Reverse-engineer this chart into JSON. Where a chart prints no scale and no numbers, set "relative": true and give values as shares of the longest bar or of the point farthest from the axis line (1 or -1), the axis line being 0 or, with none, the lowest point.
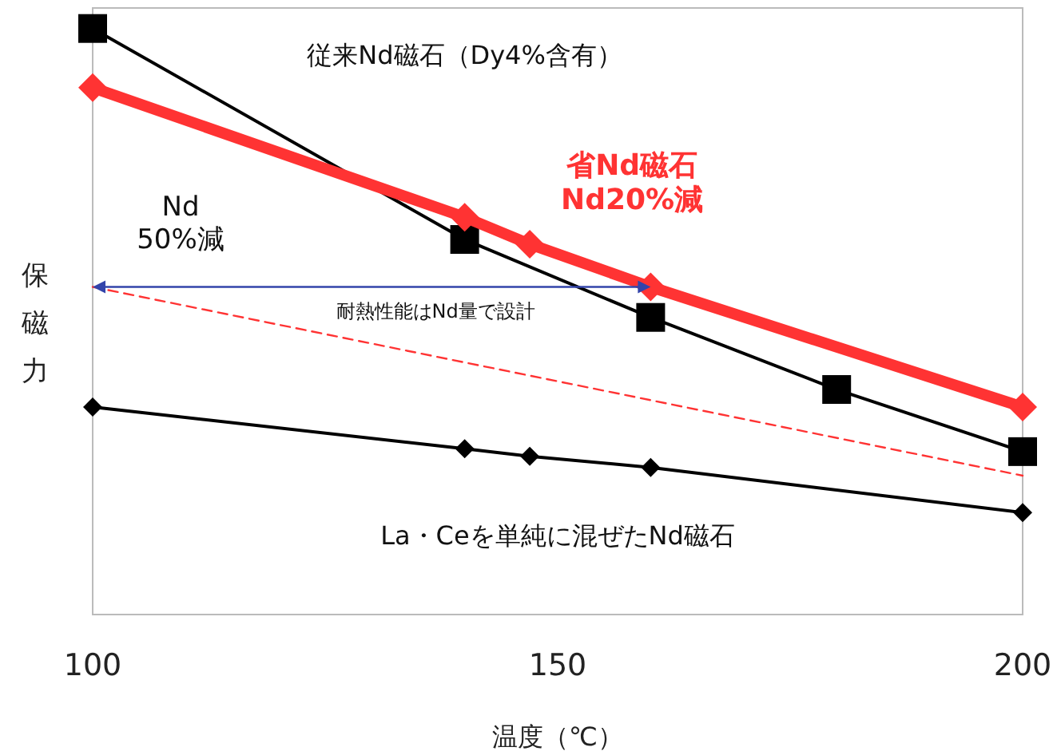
{
  "chart_data": {
    "type": "line",
    "relative": true,
    "xlabel": "温度（℃）",
    "ylabel": "保磁力",
    "xlim": [
      100,
      200
    ],
    "xticks": [
      100,
      150,
      200
    ],
    "grid": false,
    "series": [
      {
        "name": "従来Nd磁石（Dy4%含有）",
        "color": "#000000",
        "marker": "square",
        "x": [
          100,
          140,
          160,
          180,
          200
        ],
        "values": [
          1,
          0.64,
          0.507,
          0.384,
          0.278
        ]
      },
      {
        "name": "省Nd磁石\nNd20%減",
        "color": "#ff3333",
        "marker": "diamond",
        "x": [
          100,
          140,
          147,
          160,
          200
        ],
        "values": [
          0.899,
          0.678,
          0.632,
          0.559,
          0.354
        ]
      },
      {
        "name": "La・Ceを単純に混ぜたNd磁石",
        "color": "#000000",
        "marker": "diamond",
        "x": [
          100,
          140,
          147,
          160,
          200
        ],
        "values": [
          0.354,
          0.283,
          0.27,
          0.251,
          0.174
        ]
      },
      {
        "color": "#ff3333",
        "line_style": "dashed",
        "x": [
          100,
          200
        ],
        "values": [
          0.559,
          0.237
        ]
      }
    ],
    "annotations": [
      "Nd\n50%減",
      "耐熱性能はNd量で設計"
    ]
  }
}
